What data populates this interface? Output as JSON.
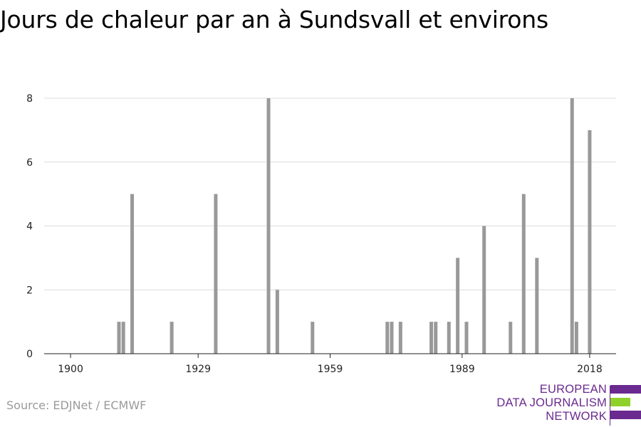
{
  "title": "Jours de chaleur par an à Sundsvall et environs",
  "source": "Source: EDJNet / ECMWF",
  "logo": {
    "lines": [
      "EUROPEAN",
      "DATA JOURNALISM",
      "NETWORK"
    ],
    "colors": {
      "purple": "#6a2a8f",
      "green": "#8fd12b"
    }
  },
  "chart_data": {
    "type": "bar",
    "title": "Jours de chaleur par an à Sundsvall et environs",
    "xlabel": "",
    "ylabel": "",
    "xlim": [
      1894,
      2024
    ],
    "ylim": [
      0,
      8
    ],
    "grid": true,
    "bar_color": "#999999",
    "x_ticks": [
      1900,
      1929,
      1959,
      1989,
      2018
    ],
    "y_ticks": [
      0,
      2,
      4,
      6,
      8
    ],
    "points": [
      {
        "year": 1911,
        "value": 1
      },
      {
        "year": 1912,
        "value": 1
      },
      {
        "year": 1914,
        "value": 5
      },
      {
        "year": 1923,
        "value": 1
      },
      {
        "year": 1933,
        "value": 5
      },
      {
        "year": 1945,
        "value": 8
      },
      {
        "year": 1947,
        "value": 2
      },
      {
        "year": 1955,
        "value": 1
      },
      {
        "year": 1972,
        "value": 1
      },
      {
        "year": 1973,
        "value": 1
      },
      {
        "year": 1975,
        "value": 1
      },
      {
        "year": 1982,
        "value": 1
      },
      {
        "year": 1983,
        "value": 1
      },
      {
        "year": 1986,
        "value": 1
      },
      {
        "year": 1988,
        "value": 3
      },
      {
        "year": 1990,
        "value": 1
      },
      {
        "year": 1994,
        "value": 4
      },
      {
        "year": 2000,
        "value": 1
      },
      {
        "year": 2003,
        "value": 5
      },
      {
        "year": 2006,
        "value": 3
      },
      {
        "year": 2014,
        "value": 8
      },
      {
        "year": 2015,
        "value": 1
      },
      {
        "year": 2018,
        "value": 7
      }
    ]
  }
}
